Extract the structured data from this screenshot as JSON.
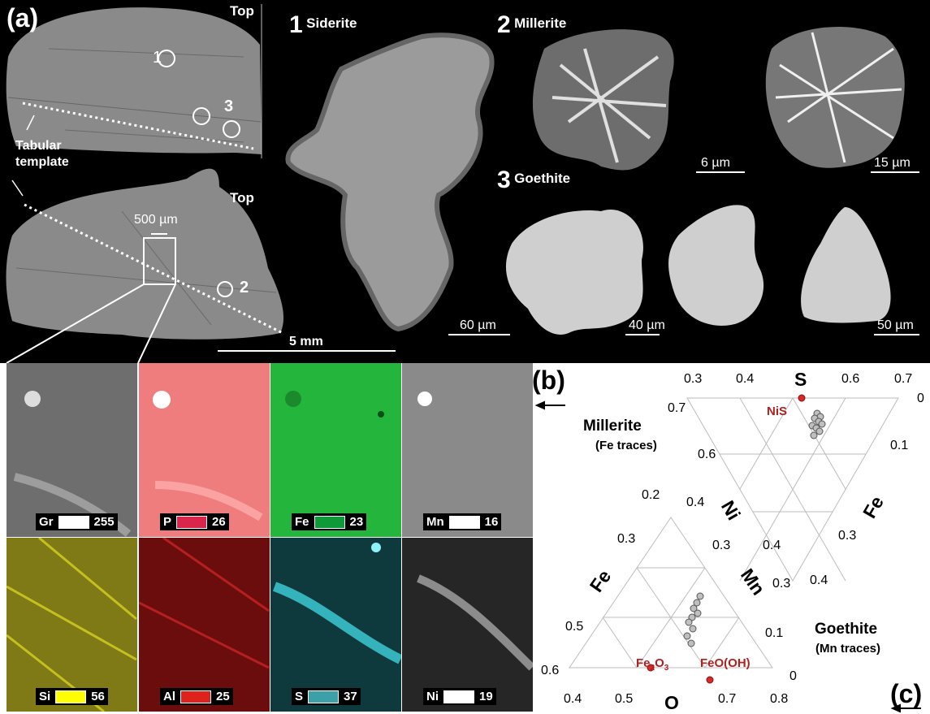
{
  "panel_a": {
    "label": "(a)",
    "top_label_1": "Top",
    "top_label_2": "Top",
    "tabular_template": "Tabular\ntemplate",
    "scale_500": "500 µm",
    "scale_5mm": "5 mm",
    "marker_1": "1",
    "marker_2": "2",
    "marker_3": "3",
    "siderite": {
      "num": "1",
      "name": "Siderite",
      "scale": "60 µm"
    },
    "millerite": {
      "num": "2",
      "name": "Millerite",
      "scale_a": "6 µm",
      "scale_b": "15 µm"
    },
    "goethite": {
      "num": "3",
      "name": "Goethite",
      "scale_a": "40 µm",
      "scale_b": "50 µm"
    }
  },
  "maps": [
    {
      "el": "Gr",
      "val": "255",
      "color": "#ffffff"
    },
    {
      "el": "P",
      "val": "26",
      "color": "#d9264a"
    },
    {
      "el": "Fe",
      "val": "23",
      "color": "#0f9a3a"
    },
    {
      "el": "Mn",
      "val": "16",
      "color": "#ffffff"
    },
    {
      "el": "Si",
      "val": "56",
      "color": "#ffff00"
    },
    {
      "el": "Al",
      "val": "25",
      "color": "#e0221c"
    },
    {
      "el": "S",
      "val": "37",
      "color": "#3d9fa8"
    },
    {
      "el": "Ni",
      "val": "19",
      "color": "#ffffff"
    }
  ],
  "panel_b": {
    "label": "(b)",
    "title": "Millerite",
    "subtitle": "(Fe traces)",
    "apex": "S",
    "left_axis": "Ni",
    "right_axis": "Fe",
    "point_label": "NiS",
    "top_ticks": [
      "0.3",
      "0.4",
      "0.6",
      "0.7"
    ],
    "left_ticks": [
      "0.7",
      "0.6",
      "0.4",
      "0.3"
    ],
    "right_ticks": [
      "0",
      "0.1",
      "0.3",
      "0.4"
    ]
  },
  "panel_c": {
    "label": "(c)",
    "title": "Goethite",
    "subtitle": "(Mn traces)",
    "apex": "O",
    "left_axis": "Fe",
    "right_axis": "Mn",
    "point_label_1": "Fe2O3",
    "point_label_2": "FeO(OH)",
    "left_ticks": [
      "0.2",
      "0.3",
      "0.5",
      "0.6"
    ],
    "right_ticks": [
      "0.4",
      "0.3",
      "0.1",
      "0"
    ],
    "bottom_ticks": [
      "0.4",
      "0.5",
      "0.7",
      "0.8"
    ]
  },
  "colors": {
    "reference_point": "#d42a2a",
    "data_point": "#bfbfbf"
  }
}
